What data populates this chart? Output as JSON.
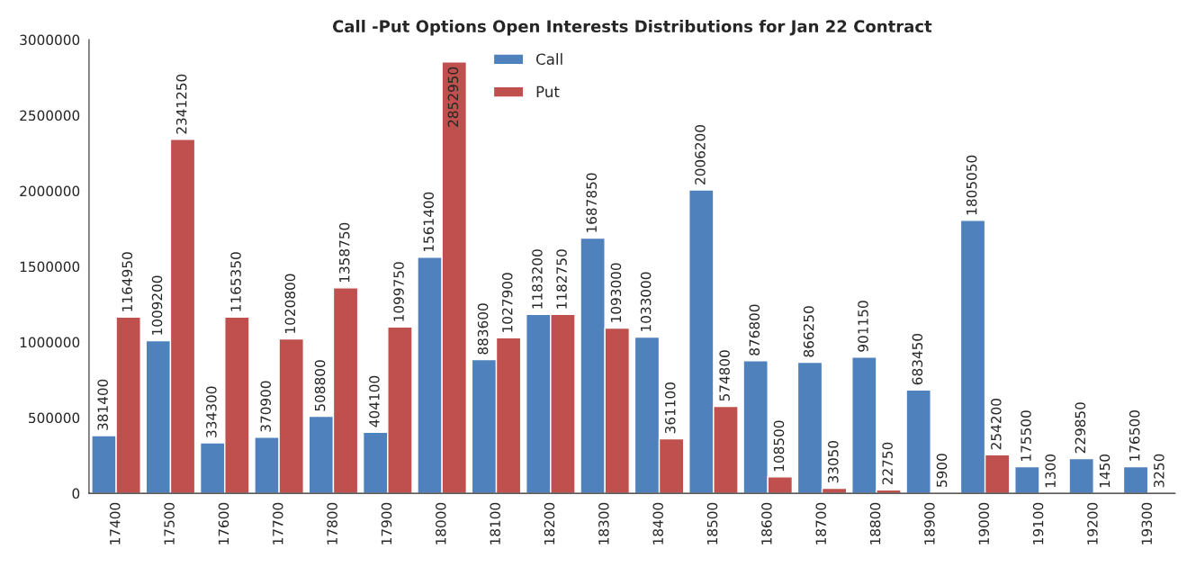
{
  "chart_data": {
    "type": "bar",
    "title": "Call -Put Options Open Interests Distributions for Jan 22 Contract",
    "categories": [
      "17400",
      "17500",
      "17600",
      "17700",
      "17800",
      "17900",
      "18000",
      "18100",
      "18200",
      "18300",
      "18400",
      "18500",
      "18600",
      "18700",
      "18800",
      "18900",
      "19000",
      "19100",
      "19200",
      "19300"
    ],
    "series": [
      {
        "name": "Call",
        "color": "#4f81bd",
        "values": [
          381400,
          1009200,
          334300,
          370900,
          508800,
          404100,
          1561400,
          883600,
          1183200,
          1687850,
          1033000,
          2006200,
          876800,
          866250,
          901150,
          683450,
          1805050,
          175500,
          229850,
          176500
        ]
      },
      {
        "name": "Put",
        "color": "#c0504d",
        "values": [
          1164950,
          2341250,
          1165350,
          1020800,
          1358750,
          1099750,
          2852950,
          1027900,
          1182750,
          1093000,
          361100,
          574800,
          108500,
          33050,
          22750,
          5900,
          254200,
          1300,
          1450,
          3250
        ]
      }
    ],
    "ylim": [
      0,
      3000000
    ],
    "yticks": [
      0,
      500000,
      1000000,
      1500000,
      2000000,
      2500000,
      3000000
    ],
    "data_labels": true,
    "legend": "top left",
    "grid": false
  }
}
